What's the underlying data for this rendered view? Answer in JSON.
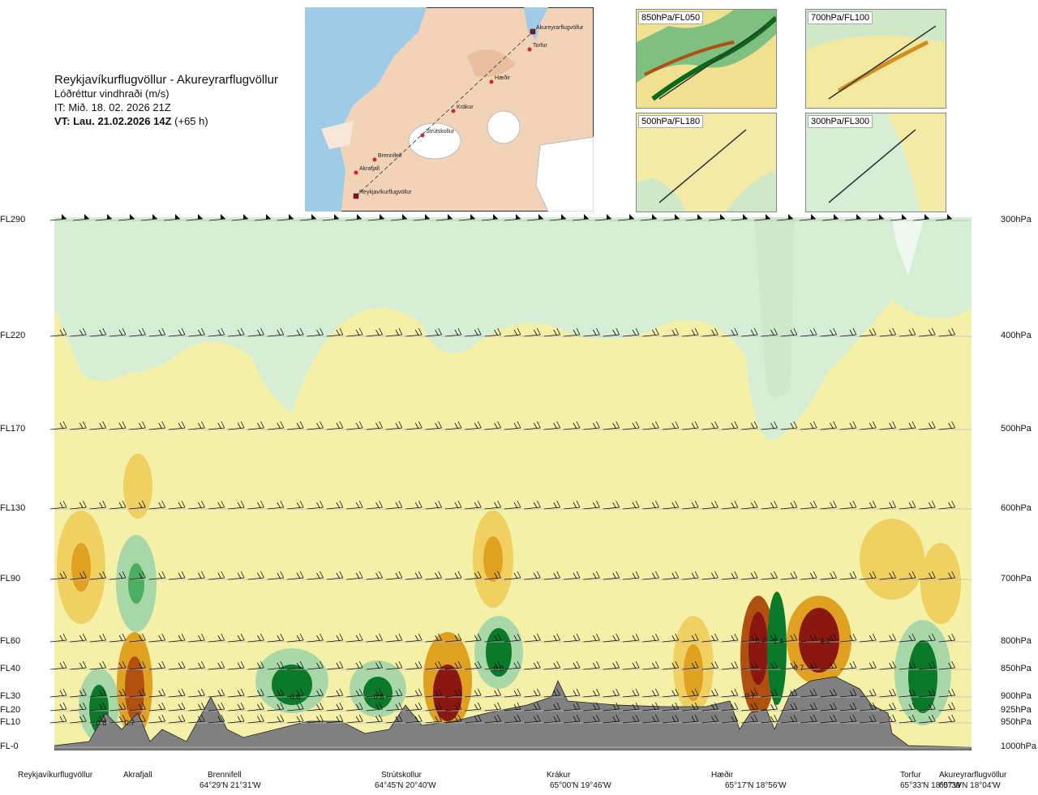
{
  "header": {
    "route": "Reykjavíkurflugvöllur - Akureyrarflugvöllur",
    "variable": "Lóðréttur vindhraði (m/s)",
    "issued": "IT: Mið. 18. 02. 2026 21Z",
    "valid_bold": "VT: Lau. 21.02.2026 14Z",
    "valid_offset": "(+65 h)"
  },
  "map": {
    "labels": [
      "Akureyrarflugvöllur",
      "Torfur",
      "Hæðir",
      "Krákur",
      "Strútskollur",
      "Brennifell",
      "Akrafjall",
      "Reykjavíkurflugvöllur"
    ]
  },
  "panels": [
    {
      "label": "850hPa/FL050"
    },
    {
      "label": "700hPa/FL100"
    },
    {
      "label": "500hPa/FL180"
    },
    {
      "label": "300hPa/FL300"
    }
  ],
  "levels": [
    {
      "fl": "FL290",
      "hpa": "300hPa"
    },
    {
      "fl": "FL220",
      "hpa": "400hPa"
    },
    {
      "fl": "FL170",
      "hpa": "500hPa"
    },
    {
      "fl": "FL130",
      "hpa": "600hPa"
    },
    {
      "fl": "FL90",
      "hpa": "700hPa"
    },
    {
      "fl": "FL60",
      "hpa": "800hPa"
    },
    {
      "fl": "FL40",
      "hpa": "850hPa"
    },
    {
      "fl": "FL30",
      "hpa": "900hPa"
    },
    {
      "fl": "FL20",
      "hpa": "925hPa"
    },
    {
      "fl": "FL10",
      "hpa": "950hPa"
    },
    {
      "fl": "FL-0",
      "hpa": "1000hPa"
    }
  ],
  "waypoints": [
    {
      "name": "Reykjavíkurflugvöllur",
      "coord": ""
    },
    {
      "name": "Akrafjall",
      "coord": ""
    },
    {
      "name": "Brennifell",
      "coord": "64°29'N 21°31'W"
    },
    {
      "name": "Strútskollur",
      "coord": "64°45'N 20°40'W"
    },
    {
      "name": "Krákur",
      "coord": "65°00'N 19°46'W"
    },
    {
      "name": "Hæðir",
      "coord": "65°17'N 18°56'W"
    },
    {
      "name": "Torfur",
      "coord": "65°33'N 18°07'W"
    },
    {
      "name": "Akureyrarflugvöllur",
      "coord": "65°39'N 18°04'W"
    }
  ],
  "chart_data": {
    "type": "heatmap",
    "variable": "Lóðréttur vindhraði (m/s)",
    "y_levels_hpa": [
      300,
      400,
      500,
      600,
      700,
      800,
      850,
      900,
      925,
      950,
      1000
    ],
    "annotations": [
      {
        "value": "0.8",
        "near": "Akrafjall",
        "level_hpa": 950
      },
      {
        "value": "0.7",
        "near": "Brennifell",
        "level_hpa": 900
      },
      {
        "value": "0.6",
        "near": "Strútskollur",
        "level_hpa": 900
      },
      {
        "value": "0.8",
        "near": "Krákur",
        "level_hpa": 850
      },
      {
        "value": "0.8",
        "near": "Hæðir",
        "level_hpa": 900
      },
      {
        "value": "0.7",
        "near": "Hæðir",
        "level_hpa": 800
      },
      {
        "value": "0.7",
        "near": "Hæðir",
        "level_hpa": 800
      },
      {
        "value": "-1.4",
        "near": "Hæðir",
        "level_hpa": 800
      },
      {
        "value": "1.2",
        "near": "Hæðir",
        "level_hpa": 850
      },
      {
        "value": "0.7",
        "near": "Torfur",
        "level_hpa": 850
      }
    ],
    "colors": {
      "strong_up": "#0a7a2a",
      "mod_up": "#4caf60",
      "weak_up": "#a8d8a8",
      "very_weak_up": "#d6eed4",
      "neutral": "#f5f0a8",
      "weak_down": "#f0d060",
      "mod_down": "#e0a020",
      "strong_down": "#b05010",
      "very_strong_down": "#8a1810",
      "terrain": "#808080"
    }
  }
}
